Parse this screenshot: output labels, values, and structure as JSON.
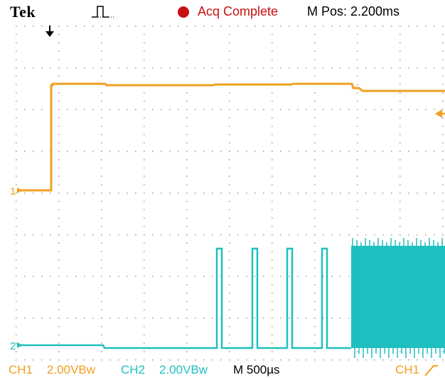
{
  "header": {
    "brand": "Tek",
    "trigger_icon": "pulse-trigger-icon",
    "status_icon": "record-dot-icon",
    "status_text": "Acq Complete",
    "mpos_text": "M Pos: 2.200ms"
  },
  "footer": {
    "ch1_label": "CH1",
    "ch1_scale": "2.00VBw",
    "ch2_label": "CH2",
    "ch2_scale": "2.00VBw",
    "timebase": "M 500µs",
    "trigger_source": "CH1",
    "trigger_slope_icon": "rising-edge-icon"
  },
  "markers": {
    "ch1_ground": "1",
    "ch2_ground": "2",
    "trigger_position_icon": "trigger-position-arrow-icon",
    "trigger_level_icon": "trigger-level-arrow-icon"
  },
  "colors": {
    "ch1": "#f0a020",
    "ch2": "#20bfbf",
    "status": "#c81010",
    "grid_dots": "#9a9a9a"
  }
}
